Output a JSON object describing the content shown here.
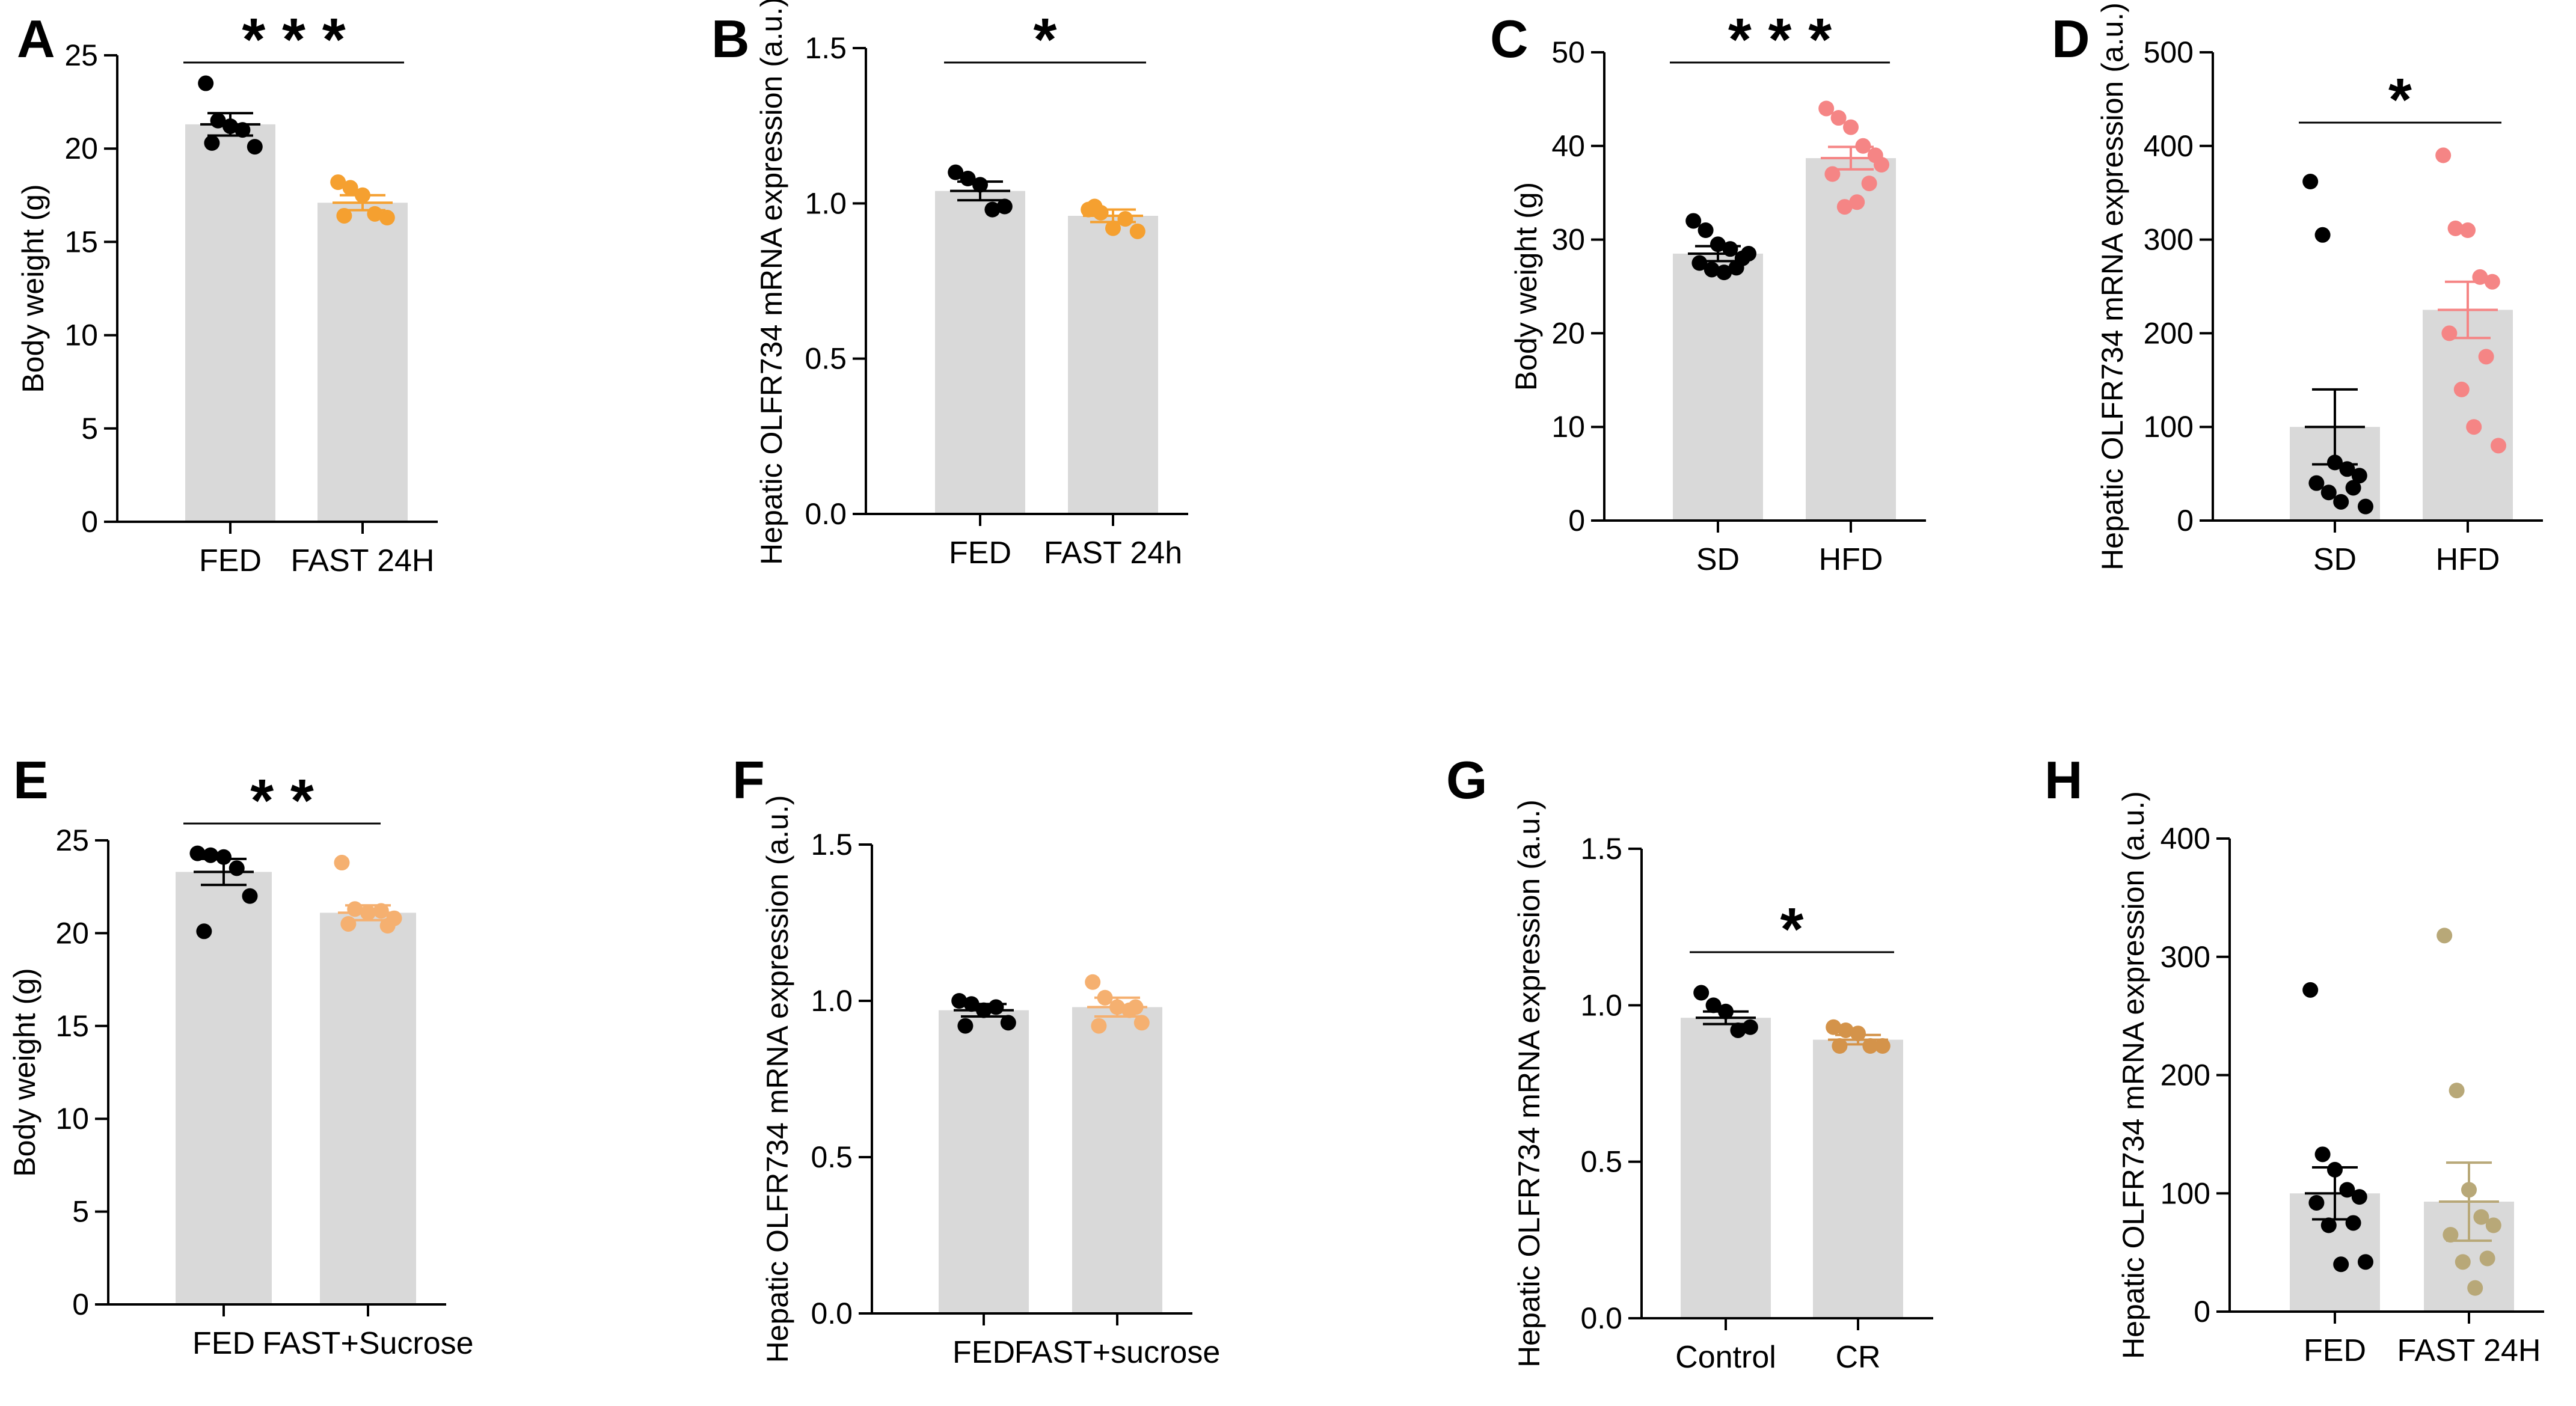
{
  "chart_data": [
    {
      "panel": "A",
      "type": "bar",
      "ylabel": "Body weight (g)",
      "ylim": [
        0,
        25
      ],
      "yticks": [
        "0",
        "5",
        "10",
        "15",
        "20",
        "25"
      ],
      "categories": [
        "FED",
        "FAST 24H"
      ],
      "bar_values": [
        21.3,
        17.1
      ],
      "errors": [
        0.6,
        0.4
      ],
      "point_colors": [
        "#000000",
        "#f5a030"
      ],
      "points": [
        [
          23.5,
          21.5,
          21.2,
          21.0,
          20.1,
          20.3
        ],
        [
          18.2,
          17.9,
          17.5,
          16.5,
          16.3,
          16.4
        ]
      ],
      "significance": "* * *"
    },
    {
      "panel": "B",
      "type": "bar",
      "ylabel": "Hepatic OLFR734 mRNA expression (a.u.)",
      "ylim": [
        0,
        1.5
      ],
      "yticks": [
        "0.0",
        "0.5",
        "1.0",
        "1.5"
      ],
      "categories": [
        "FED",
        "FAST 24h"
      ],
      "bar_values": [
        1.04,
        0.96
      ],
      "errors": [
        0.03,
        0.02
      ],
      "point_colors": [
        "#000000",
        "#f5a030"
      ],
      "points": [
        [
          1.1,
          1.08,
          1.06,
          0.98,
          0.99
        ],
        [
          0.98,
          0.97,
          0.92,
          0.95,
          0.91,
          0.99
        ]
      ],
      "significance": "*"
    },
    {
      "panel": "C",
      "type": "bar",
      "ylabel": "Body weight (g)",
      "ylim": [
        0,
        50
      ],
      "yticks": [
        "0",
        "10",
        "20",
        "30",
        "40",
        "50"
      ],
      "categories": [
        "SD",
        "HFD"
      ],
      "bar_values": [
        28.5,
        38.7
      ],
      "errors": [
        0.8,
        1.2
      ],
      "point_colors": [
        "#000000",
        "#f58585"
      ],
      "points": [
        [
          32.0,
          31.0,
          29.5,
          29.0,
          28.0,
          27.5,
          27.0,
          26.8,
          26.5,
          28.5
        ],
        [
          44.0,
          43.0,
          42.0,
          40.0,
          39.0,
          37.0,
          36.0,
          33.5,
          34.0,
          38.0
        ]
      ],
      "significance": "* * *"
    },
    {
      "panel": "D",
      "type": "bar",
      "ylabel": "Hepatic OLFR734 mRNA expression (a.u.)",
      "ylim": [
        0,
        500
      ],
      "yticks": [
        "0",
        "100",
        "200",
        "300",
        "400",
        "500"
      ],
      "categories": [
        "SD",
        "HFD"
      ],
      "bar_values": [
        100,
        225
      ],
      "errors": [
        40,
        30
      ],
      "point_colors": [
        "#000000",
        "#f58585"
      ],
      "points": [
        [
          362,
          305,
          62,
          55,
          48,
          40,
          35,
          30,
          20,
          15
        ],
        [
          390,
          312,
          310,
          260,
          255,
          200,
          175,
          140,
          100,
          80
        ]
      ],
      "significance": "*"
    },
    {
      "panel": "E",
      "type": "bar",
      "ylabel": "Body weight (g)",
      "ylim": [
        0,
        25
      ],
      "yticks": [
        "0",
        "5",
        "10",
        "15",
        "20",
        "25"
      ],
      "categories": [
        "FED",
        "FAST+Sucrose"
      ],
      "bar_values": [
        23.3,
        21.1
      ],
      "errors": [
        0.7,
        0.4
      ],
      "point_colors": [
        "#000000",
        "#f5b070"
      ],
      "points": [
        [
          24.3,
          24.2,
          24.1,
          23.5,
          22.0,
          20.1
        ],
        [
          23.8,
          21.3,
          21.1,
          21.2,
          20.8,
          20.5,
          20.4
        ]
      ],
      "significance": "* *"
    },
    {
      "panel": "F",
      "type": "bar",
      "ylabel": "Hepatic OLFR734 mRNA expression (a.u.)",
      "ylim": [
        0,
        1.5
      ],
      "yticks": [
        "0.0",
        "0.5",
        "1.0",
        "1.5"
      ],
      "categories": [
        "FED",
        "FAST+sucrose"
      ],
      "bar_values": [
        0.97,
        0.98
      ],
      "errors": [
        0.02,
        0.03
      ],
      "point_colors": [
        "#000000",
        "#f5b070"
      ],
      "points": [
        [
          1.0,
          0.99,
          0.97,
          0.98,
          0.93,
          0.92
        ],
        [
          1.06,
          1.01,
          0.98,
          0.97,
          0.93,
          0.92,
          0.98
        ]
      ],
      "significance": ""
    },
    {
      "panel": "G",
      "type": "bar",
      "ylabel": "Hepatic OLFR734 mRNA expression (a.u.)",
      "ylim": [
        0,
        1.5
      ],
      "yticks": [
        "0.0",
        "0.5",
        "1.0",
        "1.5"
      ],
      "categories": [
        "Control",
        "CR"
      ],
      "bar_values": [
        0.96,
        0.89
      ],
      "errors": [
        0.02,
        0.015
      ],
      "point_colors": [
        "#000000",
        "#d4934a"
      ],
      "points": [
        [
          1.04,
          1.0,
          0.98,
          0.92,
          0.93
        ],
        [
          0.93,
          0.92,
          0.91,
          0.87,
          0.87,
          0.87
        ]
      ],
      "significance": "*"
    },
    {
      "panel": "H",
      "type": "bar",
      "ylabel": "Hepatic OLFR734 mRNA expression (a.u.)",
      "ylim": [
        0,
        400
      ],
      "yticks": [
        "0",
        "100",
        "200",
        "300",
        "400"
      ],
      "categories": [
        "FED",
        "FAST 24H"
      ],
      "bar_values": [
        100,
        93
      ],
      "errors": [
        22,
        33
      ],
      "point_colors": [
        "#000000",
        "#b8a878"
      ],
      "points": [
        [
          272,
          133,
          120,
          103,
          97,
          92,
          75,
          73,
          40,
          42
        ],
        [
          318,
          187,
          103,
          80,
          73,
          65,
          45,
          42,
          20
        ]
      ],
      "significance": ""
    }
  ]
}
